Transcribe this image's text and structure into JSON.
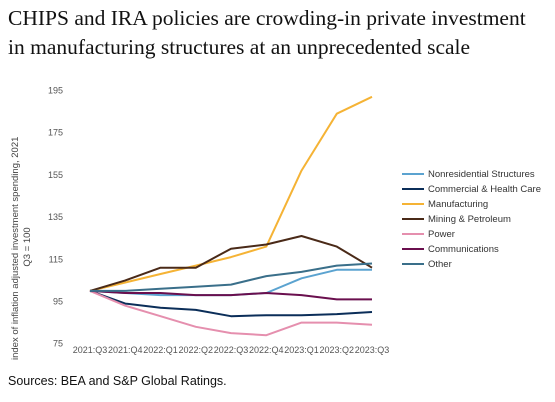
{
  "chart_data": {
    "type": "line",
    "title_lines": [
      "CHIPS and IRA policies are crowding-in private investment",
      "in manufacturing structures at an unprecedented scale"
    ],
    "ylabel_lines": [
      "index of inflation adjusted investment spending, 2021",
      "Q3 = 100"
    ],
    "xlabel": "",
    "categories": [
      "2021:Q3",
      "2021:Q4",
      "2022:Q1",
      "2022:Q2",
      "2022:Q3",
      "2022:Q4",
      "2023:Q1",
      "2023:Q2",
      "2023:Q3"
    ],
    "yticks": [
      75,
      95,
      115,
      135,
      155,
      175,
      195
    ],
    "ylim": [
      72,
      199
    ],
    "grid": false,
    "legend_position": "right",
    "series": [
      {
        "name": "Nonresidential Structures",
        "color": "#5BA3D0",
        "values": [
          100,
          99,
          98,
          98,
          98,
          99,
          106,
          110,
          110
        ]
      },
      {
        "name": "Commercial & Health Care",
        "color": "#0B2E59",
        "values": [
          100,
          94,
          92,
          91,
          88,
          88.5,
          88.5,
          89,
          90
        ]
      },
      {
        "name": "Manufacturing",
        "color": "#F5B335",
        "values": [
          100,
          104,
          108,
          112,
          116,
          121,
          157,
          184,
          192
        ]
      },
      {
        "name": "Mining & Petroleum",
        "color": "#4A2A18",
        "values": [
          100,
          105,
          111,
          111,
          120,
          122,
          126,
          121,
          111
        ]
      },
      {
        "name": "Power",
        "color": "#E58FAE",
        "values": [
          100,
          93,
          88,
          83,
          80,
          79,
          85,
          85,
          84
        ]
      },
      {
        "name": "Communications",
        "color": "#6A0F4E",
        "values": [
          100,
          99,
          99,
          98,
          98,
          99,
          98,
          96,
          96
        ]
      },
      {
        "name": "Other",
        "color": "#3A6F8A",
        "values": [
          100,
          100,
          101,
          102,
          103,
          107,
          109,
          112,
          113
        ]
      }
    ]
  },
  "source": "Sources: BEA and S&P Global Ratings."
}
